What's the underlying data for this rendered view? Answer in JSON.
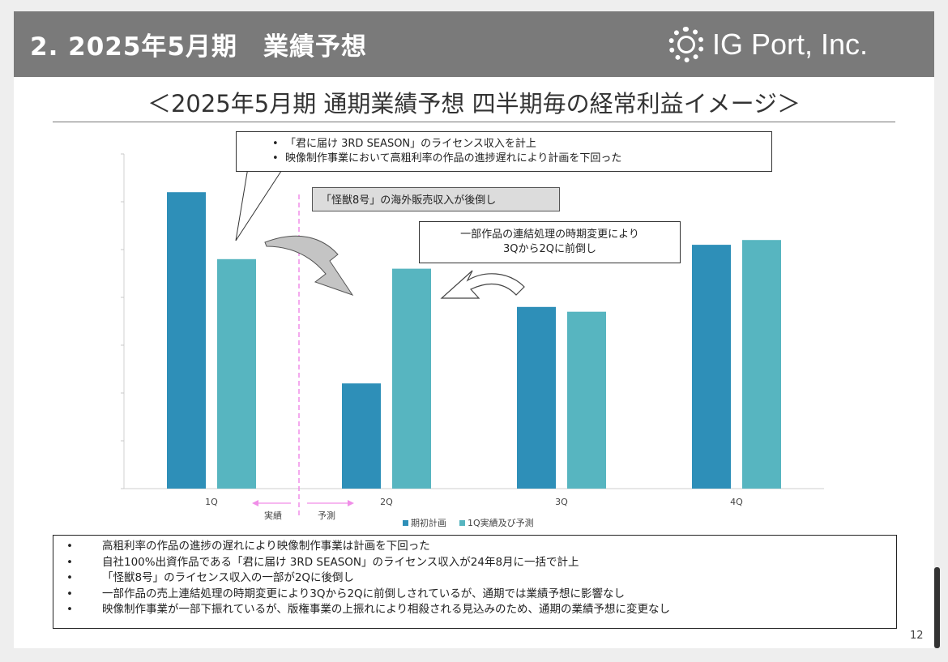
{
  "header": {
    "title": "2. 2025年5月期　業績予想",
    "company": "IG Port, Inc."
  },
  "subtitle": "＜2025年5月期 通期業績予想 四半期毎の経常利益イメージ＞",
  "colors": {
    "plan": "#2e8fb8",
    "actual": "#57b5c0",
    "header_bg": "#7a7a7a",
    "divider": "#f08ee8"
  },
  "chart_data": {
    "type": "bar",
    "title": "",
    "categories": [
      "1Q",
      "2Q",
      "3Q",
      "4Q"
    ],
    "series": [
      {
        "name": "期初計画",
        "values": [
          6.2,
          2.2,
          3.8,
          5.1
        ]
      },
      {
        "name": "1Q実績及び予測",
        "values": [
          4.8,
          4.6,
          3.7,
          5.2
        ]
      }
    ],
    "ylim": [
      0,
      7
    ],
    "xlabel": "",
    "ylabel": "",
    "legend_position": "bottom",
    "period_labels": {
      "actual": "実績",
      "forecast": "予測"
    }
  },
  "callouts": {
    "box1": [
      "「君に届け 3RD SEASON」のライセンス収入を計上",
      "映像制作事業において高粗利率の作品の進捗遅れにより計画を下回った"
    ],
    "box2": "「怪獣8号」の海外販売収入が後倒し",
    "box3": [
      "一部作品の連結処理の時期変更により",
      "3Qから2Qに前倒し"
    ]
  },
  "notes": [
    "高粗利率の作品の進捗の遅れにより映像制作事業は計画を下回った",
    "自社100%出資作品である「君に届け 3RD SEASON」のライセンス収入が24年8月に一括で計上",
    "「怪獣8号」のライセンス収入の一部が2Qに後倒し",
    "一部作品の売上連結処理の時期変更により3Qから2Qに前倒しされているが、通期では業績予想に影響なし",
    "映像制作事業が一部下振れているが、版権事業の上振れにより相殺される見込みのため、通期の業績予想に変更なし"
  ],
  "page_number": "12"
}
